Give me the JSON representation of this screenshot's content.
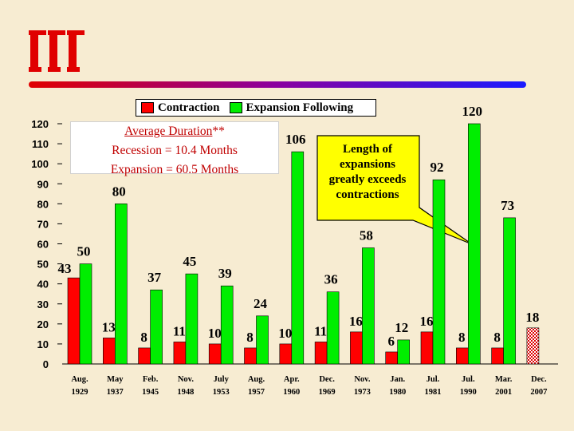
{
  "legend": {
    "contraction_label": "Contraction",
    "expansion_label": "Expansion Following"
  },
  "average_box": {
    "title": "Average Duration",
    "title_suffix": "**",
    "recession": "Recession = 10.4 Months",
    "expansion": "Expansion = 60.5 Months"
  },
  "callout": {
    "text": "Length of expansions greatly exceeds contractions"
  },
  "colors": {
    "contraction": "#ff0000",
    "expansion": "#00ee00",
    "accent_red": "#e00000",
    "rule_blue": "#1a1aff"
  },
  "chart_data": {
    "type": "bar",
    "categories": [
      [
        "Aug.",
        "1929"
      ],
      [
        "May",
        "1937"
      ],
      [
        "Feb.",
        "1945"
      ],
      [
        "Nov.",
        "1948"
      ],
      [
        "July",
        "1953"
      ],
      [
        "Aug.",
        "1957"
      ],
      [
        "Apr.",
        "1960"
      ],
      [
        "Dec.",
        "1969"
      ],
      [
        "Nov.",
        "1973"
      ],
      [
        "Jan.",
        "1980"
      ],
      [
        "Jul.",
        "1981"
      ],
      [
        "Jul.",
        "1990"
      ],
      [
        "Mar.",
        "2001"
      ],
      [
        "Dec.",
        "2007"
      ]
    ],
    "series": [
      {
        "name": "Contraction",
        "values": [
          43,
          13,
          8,
          11,
          10,
          8,
          10,
          11,
          16,
          6,
          16,
          8,
          8,
          18
        ],
        "color": "#ff0000"
      },
      {
        "name": "Expansion Following",
        "values": [
          50,
          80,
          37,
          45,
          39,
          24,
          106,
          36,
          58,
          12,
          92,
          120,
          73,
          null
        ],
        "color": "#00ee00"
      }
    ],
    "yticks": [
      0,
      10,
      20,
      30,
      40,
      50,
      60,
      70,
      80,
      90,
      100,
      110,
      120
    ],
    "ylim": [
      0,
      120
    ],
    "current_contraction_index": 13,
    "current_contraction_style": "checkered red/white (ongoing)",
    "grid": false
  }
}
